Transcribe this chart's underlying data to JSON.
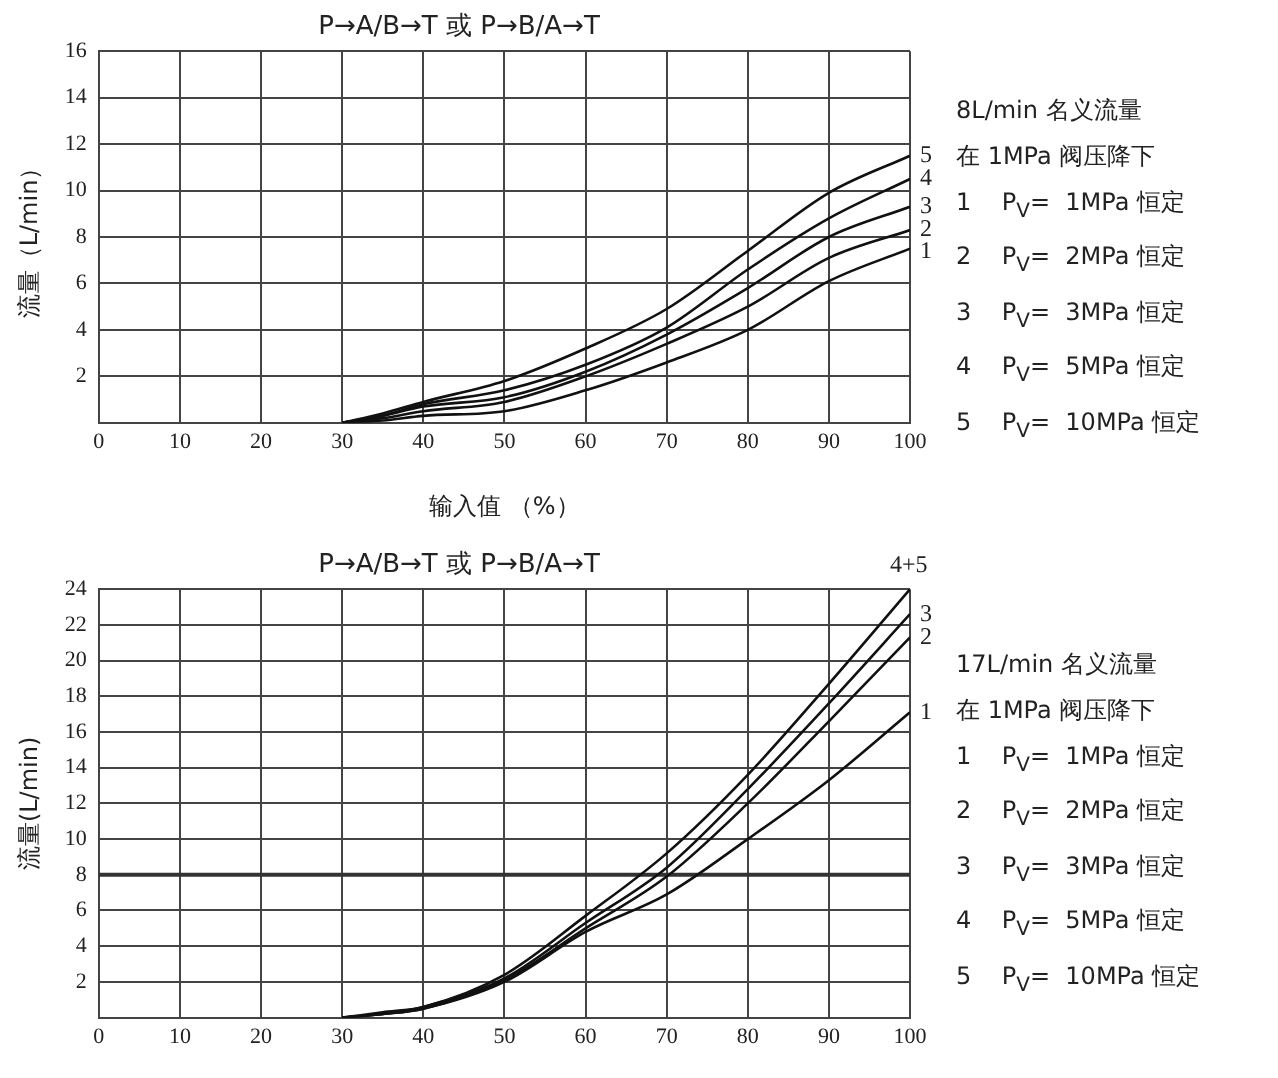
{
  "chart_data": [
    {
      "type": "line",
      "title": "P→A/B→T 或 P→B/A→T",
      "xlabel": "输入值 （%）",
      "ylabel": "流量（L/min）",
      "x": [
        30,
        35,
        40,
        50,
        60,
        70,
        80,
        90,
        100
      ],
      "series": [
        {
          "name": "5",
          "color": "#111111",
          "values": [
            0,
            0.4,
            0.9,
            1.8,
            3.2,
            4.9,
            7.4,
            9.9,
            11.5
          ]
        },
        {
          "name": "4",
          "color": "#111111",
          "values": [
            0,
            0.3,
            0.8,
            1.4,
            2.5,
            4.1,
            6.6,
            8.8,
            10.5
          ]
        },
        {
          "name": "3",
          "color": "#111111",
          "values": [
            0,
            0.3,
            0.7,
            1.1,
            2.2,
            3.8,
            5.8,
            8.0,
            9.3
          ]
        },
        {
          "name": "2",
          "color": "#111111",
          "values": [
            0,
            0.2,
            0.5,
            0.9,
            2.0,
            3.4,
            5.0,
            7.1,
            8.3
          ]
        },
        {
          "name": "1",
          "color": "#111111",
          "values": [
            0,
            0.1,
            0.3,
            0.5,
            1.4,
            2.6,
            4.0,
            6.1,
            7.5
          ]
        }
      ],
      "xlim": [
        0,
        100
      ],
      "xticks": [
        0,
        10,
        20,
        30,
        40,
        50,
        60,
        70,
        80,
        90,
        100
      ],
      "ylim": [
        0,
        16
      ],
      "yticks": [
        2,
        4,
        6,
        8,
        10,
        12,
        14,
        16
      ],
      "grid": true,
      "marker": "none",
      "annotations": [
        "8L/min 名义流量",
        "在 1MPa 阀压降下",
        "1    P$_{V}$=  1MPa 恒定",
        "2    P$_{V}$=  2MPa 恒定",
        "3    P$_{V}$=  3MPa 恒定",
        "4    P$_{V}$=  5MPa 恒定",
        "5    P$_{V}$=  10MPa 恒定"
      ]
    },
    {
      "type": "line",
      "title": "P→A/B→T 或 P→B/A→T",
      "ylabel": "流量(L/min)",
      "x": [
        30,
        35,
        40,
        50,
        60,
        70,
        80,
        90,
        100
      ],
      "series": [
        {
          "name": "4+5",
          "color": "#111111",
          "values": [
            0,
            0.3,
            0.6,
            2.4,
            5.7,
            9.2,
            13.6,
            18.7,
            24
          ]
        },
        {
          "name": "3",
          "color": "#111111",
          "values": [
            0,
            0.2,
            0.6,
            2.2,
            5.3,
            8.4,
            12.8,
            17.6,
            22.6
          ]
        },
        {
          "name": "2",
          "color": "#111111",
          "values": [
            0,
            0.2,
            0.5,
            2.1,
            5.0,
            7.9,
            12.0,
            16.6,
            21.3
          ]
        },
        {
          "name": "1",
          "color": "#111111",
          "values": [
            0,
            0.2,
            0.5,
            2.0,
            4.8,
            6.9,
            10.0,
            13.3,
            17.1
          ]
        }
      ],
      "xlim": [
        0,
        100
      ],
      "xticks": [
        0,
        10,
        20,
        30,
        40,
        50,
        60,
        70,
        80,
        90,
        100
      ],
      "ylim": [
        0,
        24
      ],
      "yticks": [
        2,
        4,
        6,
        8,
        10,
        12,
        14,
        16,
        18,
        20,
        22,
        24
      ],
      "grid": true,
      "marker": "none",
      "ref_lines": [
        {
          "axis": "y",
          "value": 8,
          "color": "#333333"
        }
      ],
      "annotations": [
        "17L/min 名义流量",
        "在 1MPa 阀压降下",
        "1    P$_{V}$=  1MPa 恒定",
        "2    P$_{V}$=  2MPa 恒定",
        "3    P$_{V}$=  3MPa 恒定",
        "4    P$_{V}$=  5MPa 恒定",
        "5    P$_{V}$=  10MPa 恒定"
      ]
    }
  ]
}
